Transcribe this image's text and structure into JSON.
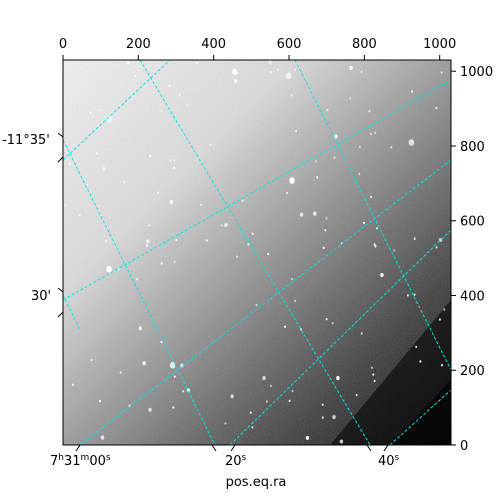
{
  "figure": {
    "xlabel": "pos.eq.ra",
    "top_ticks": [
      "0",
      "200",
      "400",
      "600",
      "800",
      "1000"
    ],
    "right_ticks": [
      "0",
      "200",
      "400",
      "600",
      "800",
      "1000"
    ],
    "ra_ticks": [
      {
        "base": "7",
        "sup1": "h",
        "mid": "31",
        "sup2": "m",
        "end": "00",
        "sup3": "s"
      },
      {
        "base": "20",
        "sup1": "s",
        "mid": "",
        "sup2": "",
        "end": "",
        "sup3": ""
      },
      {
        "base": "40",
        "sup1": "s",
        "mid": "",
        "sup2": "",
        "end": "",
        "sup3": ""
      }
    ],
    "dec_ticks": [
      "-11°35'",
      "30'"
    ],
    "grid_color": "#00e5e5",
    "image_description": "astronomical grayscale image, bright upper-left fading to dark lower-right, many point sources"
  }
}
